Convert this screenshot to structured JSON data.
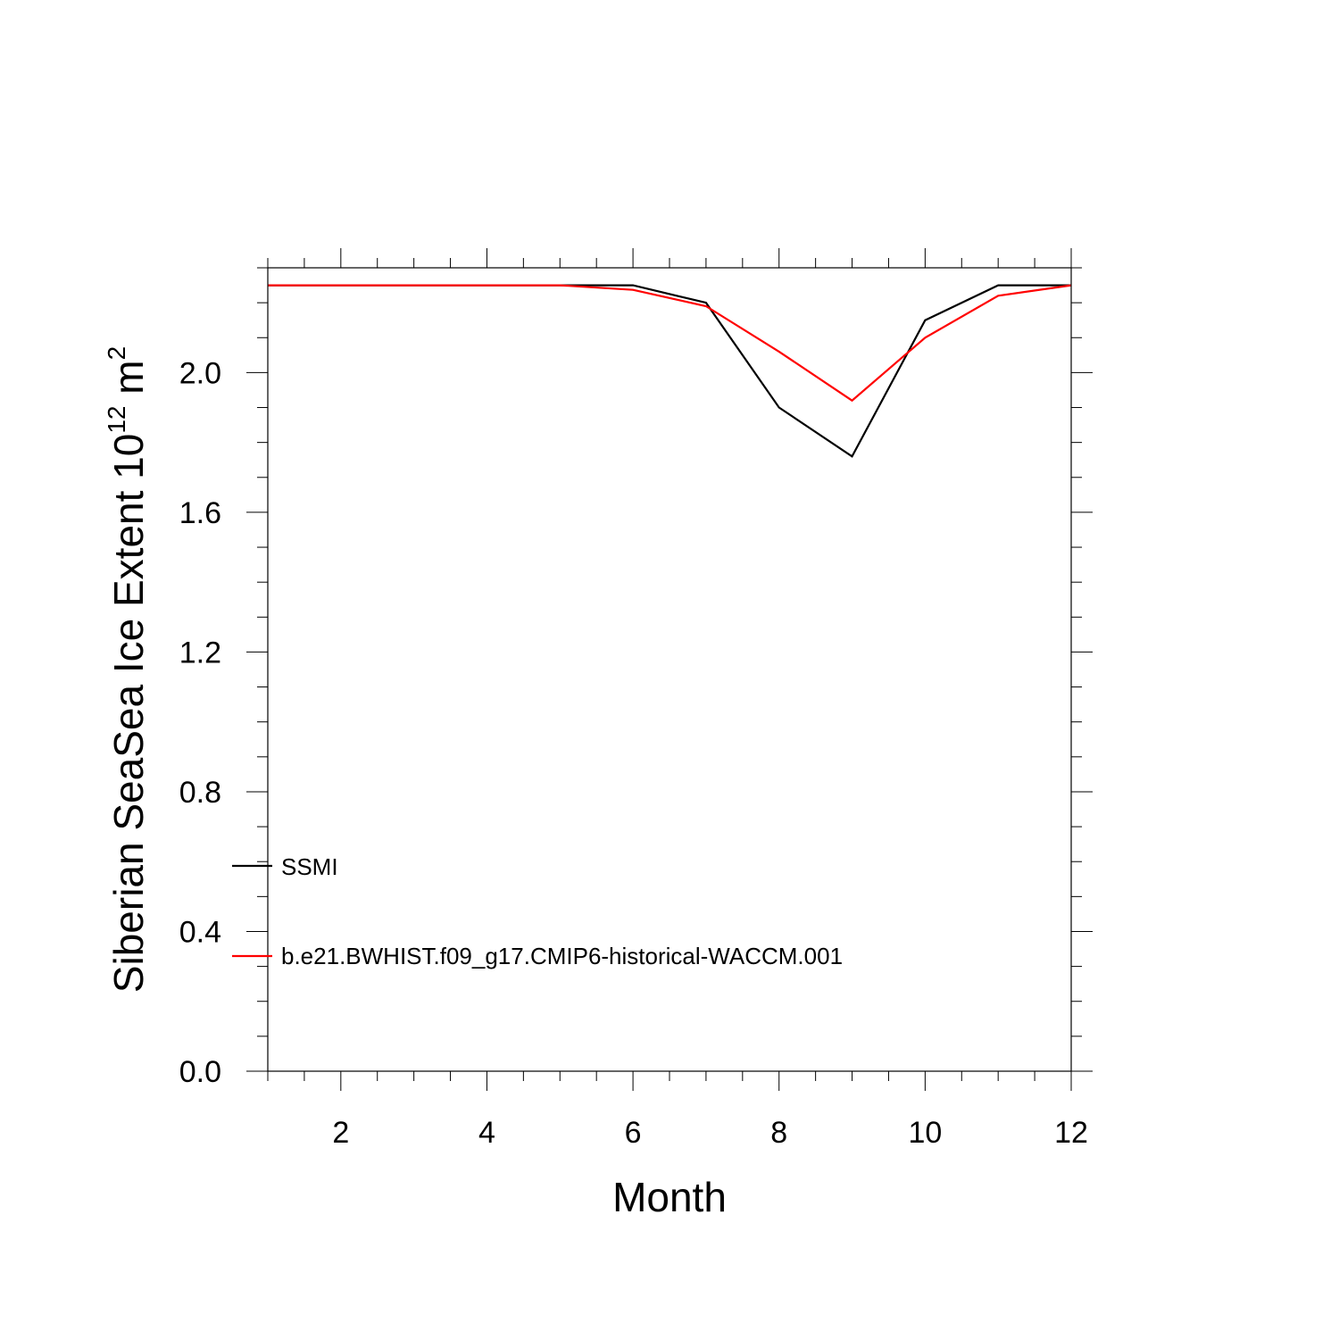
{
  "chart_data": {
    "type": "line",
    "xlabel": "Month",
    "ylabel_main": "Siberian SeaSea Ice Extent 10",
    "ylabel_sup": "12",
    "ylabel_unit": " m",
    "ylabel_unit_sup": "2",
    "xlim": [
      1,
      12
    ],
    "ylim": [
      0,
      2.3
    ],
    "x_ticks": [
      2,
      4,
      6,
      8,
      10,
      12
    ],
    "x_tick_labels": [
      "2",
      "4",
      "6",
      "8",
      "10",
      "12"
    ],
    "y_ticks": [
      0,
      0.4,
      0.8,
      1.2,
      1.6,
      2.0
    ],
    "y_tick_labels": [
      "0.0",
      "0.4",
      "0.8",
      "1.2",
      "1.6",
      "2.0"
    ],
    "x": [
      1,
      2,
      3,
      4,
      5,
      6,
      7,
      8,
      9,
      10,
      11,
      12
    ],
    "series": [
      {
        "name": "SSMI",
        "color": "#000000",
        "values": [
          2.25,
          2.25,
          2.25,
          2.25,
          2.25,
          2.25,
          2.2,
          1.9,
          1.76,
          2.15,
          2.25,
          2.25
        ]
      },
      {
        "name": "b.e21.BWHIST.f09_g17.CMIP6-historical-WACCM.001",
        "color": "#ff0000",
        "values": [
          2.25,
          2.25,
          2.25,
          2.25,
          2.25,
          2.237,
          2.19,
          2.06,
          1.92,
          2.1,
          2.22,
          2.25
        ]
      }
    ],
    "legend": "bottom-left inside"
  }
}
